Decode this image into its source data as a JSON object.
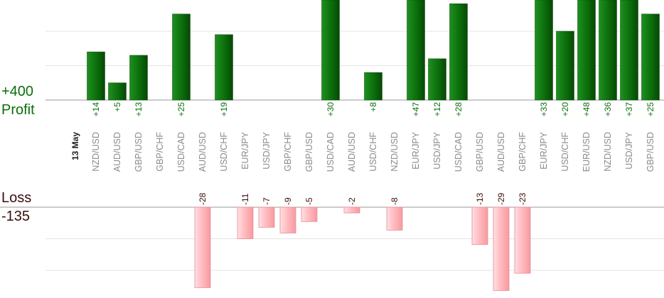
{
  "summary": {
    "profit_total": "+400",
    "profit_label": "Profit",
    "loss_label": "Loss",
    "loss_total": "-135"
  },
  "colors": {
    "profit_bar": "#0b6e0b",
    "loss_bar": "#ffb3b8",
    "profit_text": "#0b6e0b",
    "loss_text": "#3a0d0d"
  },
  "chart_data": {
    "type": "bar",
    "date_label": "13 May",
    "categories": [
      "NZD/USD",
      "AUD/USD",
      "GBP/USD",
      "GBP/CHF",
      "USD/CAD",
      "AUD/USD",
      "USD/CHF",
      "EUR/JPY",
      "USD/JPY",
      "GBP/CHF",
      "GBP/USD",
      "USD/CAD",
      "AUD/USD",
      "USD/CHF",
      "NZD/USD",
      "EUR/JPY",
      "USD/JPY",
      "USD/CAD",
      "GBP/USD",
      "AUD/USD",
      "GBP/CHF",
      "EUR/JPY",
      "USD/CHF",
      "EUR/USD",
      "NZD/USD",
      "USD/JPY",
      "GBP/USD"
    ],
    "values": [
      14,
      5,
      13,
      0,
      25,
      -28,
      19,
      -11,
      -7,
      -9,
      -5,
      30,
      -2,
      8,
      -8,
      47,
      12,
      28,
      -13,
      -29,
      -23,
      33,
      20,
      48,
      36,
      37,
      25
    ],
    "value_labels": [
      "+14",
      "+5",
      "+13",
      "",
      "+25",
      "-28",
      "+19",
      "-11",
      "-7",
      "-9",
      "-5",
      "+30",
      "-2",
      "+8",
      "-8",
      "+47",
      "+12",
      "+28",
      "-13",
      "-29",
      "-23",
      "+33",
      "+20",
      "+48",
      "+36",
      "+37",
      "+25"
    ],
    "profit_gridlines": [
      0,
      10,
      20
    ],
    "loss_gridlines": [
      0,
      -11,
      -22
    ],
    "profit_ylim": [
      0,
      29
    ],
    "loss_ylim": [
      -29,
      0
    ],
    "grid": true,
    "legend": "none"
  }
}
